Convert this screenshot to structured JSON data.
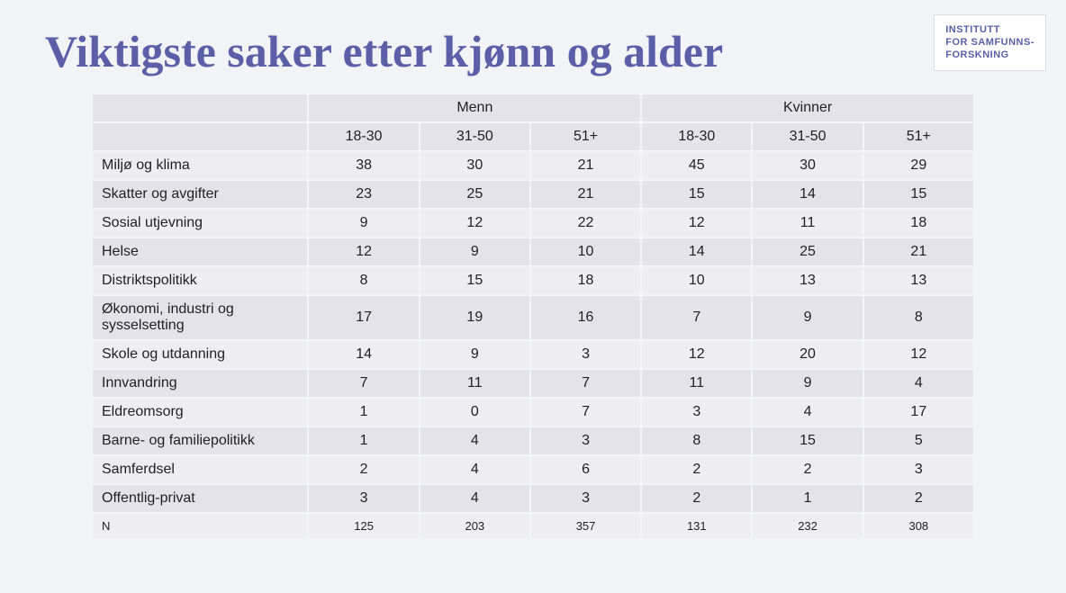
{
  "title": "Viktigste saker etter kjønn og alder",
  "logo": {
    "line1": "INSTITUTT",
    "line2": "FOR SAMFUNNS-",
    "line3": "FORSKNING"
  },
  "table": {
    "type": "table",
    "background_color": "#f2f3f7",
    "header_bg": "#e4e3ea",
    "row_odd_bg": "#eeedf2",
    "row_even_bg": "#e4e3ea",
    "border_color": "#f4f5f9",
    "title_color": "#5a5fa8",
    "title_fontsize_pt": 38,
    "cell_fontsize_pt": 12,
    "nrow_fontsize_pt": 10,
    "groups": [
      "Menn",
      "Kvinner"
    ],
    "subheaders": [
      "18-30",
      "31-50",
      "51+",
      "18-30",
      "31-50",
      "51+"
    ],
    "rows": [
      {
        "label": "Miljø og klima",
        "values": [
          38,
          30,
          21,
          45,
          30,
          29
        ]
      },
      {
        "label": "Skatter og avgifter",
        "values": [
          23,
          25,
          21,
          15,
          14,
          15
        ]
      },
      {
        "label": "Sosial utjevning",
        "values": [
          9,
          12,
          22,
          12,
          11,
          18
        ]
      },
      {
        "label": "Helse",
        "values": [
          12,
          9,
          10,
          14,
          25,
          21
        ]
      },
      {
        "label": "Distriktspolitikk",
        "values": [
          8,
          15,
          18,
          10,
          13,
          13
        ]
      },
      {
        "label": "Økonomi, industri og sysselsetting",
        "values": [
          17,
          19,
          16,
          7,
          9,
          8
        ]
      },
      {
        "label": "Skole og utdanning",
        "values": [
          14,
          9,
          3,
          12,
          20,
          12
        ]
      },
      {
        "label": "Innvandring",
        "values": [
          7,
          11,
          7,
          11,
          9,
          4
        ]
      },
      {
        "label": "Eldreomsorg",
        "values": [
          1,
          0,
          7,
          3,
          4,
          17
        ]
      },
      {
        "label": "Barne- og familiepolitikk",
        "values": [
          1,
          4,
          3,
          8,
          15,
          5
        ]
      },
      {
        "label": "Samferdsel",
        "values": [
          2,
          4,
          6,
          2,
          2,
          3
        ]
      },
      {
        "label": "Offentlig-privat",
        "values": [
          3,
          4,
          3,
          2,
          1,
          2
        ]
      }
    ],
    "n_row": {
      "label": "N",
      "values": [
        125,
        203,
        357,
        131,
        232,
        308
      ]
    }
  }
}
